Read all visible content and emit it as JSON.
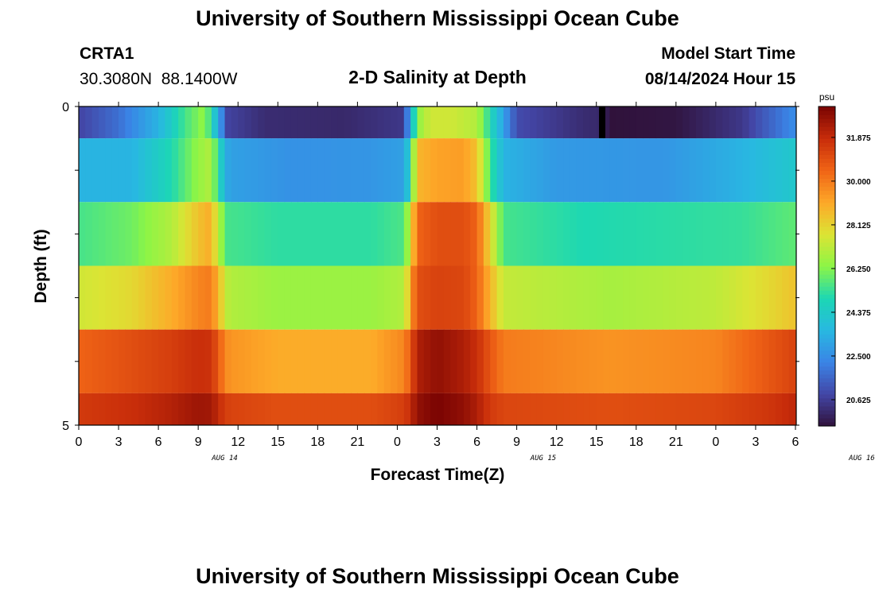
{
  "page": {
    "title": "University of Southern Mississippi Ocean Cube",
    "footer_title": "University of Southern Mississippi Ocean Cube",
    "station": {
      "id": "CRTA1",
      "lat": "30.3080N",
      "lon": "88.1400W"
    },
    "plot_title": "2-D Salinity at Depth",
    "model_start": {
      "label": "Model Start Time",
      "value": "08/14/2024 Hour 15"
    }
  },
  "chart_data": {
    "type": "heatmap",
    "title": "2-D Salinity at Depth",
    "xlabel": "Forecast Time(Z)",
    "ylabel": "Depth (ft)",
    "x_tick_labels": [
      "0",
      "3",
      "6",
      "9",
      "12",
      "15",
      "18",
      "21",
      "0",
      "3",
      "6",
      "9",
      "12",
      "15",
      "18",
      "21",
      "0",
      "3",
      "6"
    ],
    "date_labels": [
      {
        "text": "AUG 14",
        "hour": 11
      },
      {
        "text": "AUG 15",
        "hour": 35
      },
      {
        "text": "AUG 16",
        "hour": 59
      }
    ],
    "y_tick_labels": [
      "0",
      "5"
    ],
    "ylim": [
      0,
      5
    ],
    "xlim_hours": [
      0,
      54
    ],
    "colorbar": {
      "unit": "psu",
      "min": 19.5,
      "max": 33.2,
      "tick_labels": [
        "31.875",
        "30.000",
        "28.125",
        "26.250",
        "24.375",
        "22.500",
        "20.625"
      ],
      "tick_values": [
        31.875,
        30.0,
        28.125,
        26.25,
        24.375,
        22.5,
        20.625
      ]
    },
    "depth_layers": [
      {
        "top": 0.0,
        "bottom": 0.5
      },
      {
        "top": 0.5,
        "bottom": 1.5
      },
      {
        "top": 1.5,
        "bottom": 2.5
      },
      {
        "top": 2.5,
        "bottom": 3.5
      },
      {
        "top": 3.5,
        "bottom": 4.5
      },
      {
        "top": 4.5,
        "bottom": 5.0
      }
    ],
    "series": [
      {
        "name": "layer-0",
        "keyframes": [
          [
            0,
            20.8
          ],
          [
            3,
            21.8
          ],
          [
            6,
            23.5
          ],
          [
            8,
            25.5
          ],
          [
            9.5,
            26.5
          ],
          [
            10.3,
            24
          ],
          [
            11.2,
            20.8
          ],
          [
            14,
            20.2
          ],
          [
            20,
            20.1
          ],
          [
            24.5,
            20.5
          ],
          [
            24.9,
            23
          ],
          [
            25.6,
            26.5
          ],
          [
            26.5,
            27.5
          ],
          [
            28,
            27.5
          ],
          [
            30,
            27
          ],
          [
            31.5,
            24
          ],
          [
            33,
            21
          ],
          [
            38,
            20.2
          ],
          [
            39.4,
            20.1
          ],
          [
            40,
            19.5
          ],
          [
            45,
            19.6
          ],
          [
            50,
            20.5
          ],
          [
            53,
            22
          ],
          [
            54,
            22.5
          ]
        ]
      },
      {
        "name": "layer-1",
        "keyframes": [
          [
            0,
            23.5
          ],
          [
            4,
            23.5
          ],
          [
            7,
            25
          ],
          [
            9,
            26.5
          ],
          [
            10,
            27
          ],
          [
            10.5,
            25
          ],
          [
            11.3,
            23
          ],
          [
            16,
            22.6
          ],
          [
            22,
            22.7
          ],
          [
            24.6,
            23
          ],
          [
            25,
            25.5
          ],
          [
            25.6,
            28.8
          ],
          [
            27,
            29.2
          ],
          [
            29,
            29.3
          ],
          [
            30,
            28.5
          ],
          [
            31,
            25.5
          ],
          [
            32,
            23.5
          ],
          [
            36,
            22.8
          ],
          [
            44,
            22.7
          ],
          [
            50,
            23.5
          ],
          [
            54,
            24.3
          ]
        ]
      },
      {
        "name": "layer-2",
        "keyframes": [
          [
            0,
            25.5
          ],
          [
            4,
            26
          ],
          [
            7,
            27
          ],
          [
            9,
            28.5
          ],
          [
            10,
            29
          ],
          [
            10.5,
            27
          ],
          [
            11.2,
            25.5
          ],
          [
            15,
            25.2
          ],
          [
            22,
            25.2
          ],
          [
            24.6,
            25.6
          ],
          [
            25,
            28
          ],
          [
            25.6,
            30.5
          ],
          [
            27,
            31
          ],
          [
            29,
            31
          ],
          [
            30,
            30.5
          ],
          [
            31,
            28
          ],
          [
            32,
            25.5
          ],
          [
            38,
            25
          ],
          [
            50,
            25.3
          ],
          [
            54,
            25.8
          ]
        ]
      },
      {
        "name": "layer-3",
        "keyframes": [
          [
            0,
            27.5
          ],
          [
            4,
            28
          ],
          [
            7,
            29
          ],
          [
            9,
            29.8
          ],
          [
            10,
            30
          ],
          [
            10.6,
            28.5
          ],
          [
            11.3,
            27
          ],
          [
            15,
            26.6
          ],
          [
            22,
            26.6
          ],
          [
            24.6,
            27
          ],
          [
            25,
            29.5
          ],
          [
            25.6,
            31
          ],
          [
            27,
            31.3
          ],
          [
            29,
            31.2
          ],
          [
            30,
            30.5
          ],
          [
            31,
            28.8
          ],
          [
            32,
            27.3
          ],
          [
            40,
            26.8
          ],
          [
            48,
            27.2
          ],
          [
            52,
            28
          ],
          [
            54,
            28.5
          ]
        ]
      },
      {
        "name": "layer-4",
        "keyframes": [
          [
            0,
            30.5
          ],
          [
            4,
            31
          ],
          [
            7,
            31.4
          ],
          [
            9,
            31.8
          ],
          [
            10,
            31.7
          ],
          [
            10.6,
            30.5
          ],
          [
            11.3,
            29.5
          ],
          [
            15,
            29
          ],
          [
            22,
            29
          ],
          [
            24.6,
            29.8
          ],
          [
            25,
            31
          ],
          [
            25.6,
            32.3
          ],
          [
            27,
            32.8
          ],
          [
            29,
            32.3
          ],
          [
            30,
            31.8
          ],
          [
            31,
            30.8
          ],
          [
            32,
            30
          ],
          [
            40,
            29.5
          ],
          [
            48,
            29.8
          ],
          [
            52,
            30.8
          ],
          [
            54,
            31.3
          ]
        ]
      },
      {
        "name": "layer-5",
        "keyframes": [
          [
            0,
            31.5
          ],
          [
            4,
            31.8
          ],
          [
            7,
            32.2
          ],
          [
            9,
            32.6
          ],
          [
            10,
            32.5
          ],
          [
            10.6,
            31.8
          ],
          [
            11.3,
            31.3
          ],
          [
            15,
            31
          ],
          [
            22,
            31
          ],
          [
            24.6,
            31.4
          ],
          [
            25,
            32
          ],
          [
            25.6,
            32.8
          ],
          [
            27,
            33.2
          ],
          [
            29,
            32.8
          ],
          [
            30,
            32.3
          ],
          [
            31,
            31.5
          ],
          [
            32,
            31.2
          ],
          [
            40,
            31
          ],
          [
            48,
            31.2
          ],
          [
            52,
            31.6
          ],
          [
            54,
            32
          ]
        ]
      }
    ]
  }
}
